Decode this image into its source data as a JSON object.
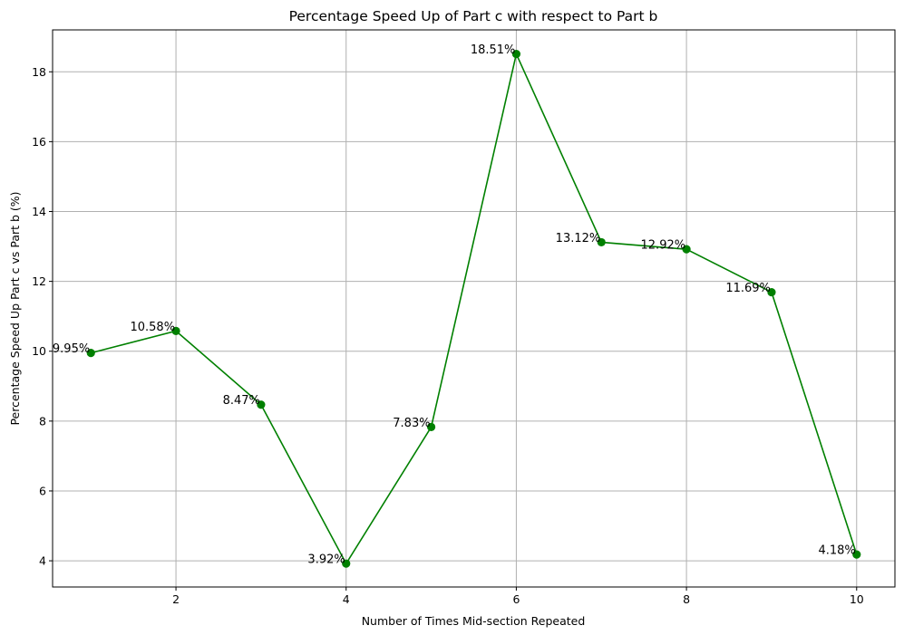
{
  "chart_data": {
    "type": "line",
    "title": "Percentage Speed Up of Part c with respect to Part b",
    "xlabel": "Number of Times Mid-section Repeated",
    "ylabel": "Percentage Speed Up Part c vs Part b (%)",
    "x": [
      1,
      2,
      3,
      4,
      5,
      6,
      7,
      8,
      9,
      10
    ],
    "series": [
      {
        "values": [
          9.95,
          10.58,
          8.47,
          3.92,
          7.83,
          18.51,
          13.12,
          12.92,
          11.69,
          4.18
        ],
        "color": "#008000",
        "marker": "circle"
      }
    ],
    "data_labels": [
      "9.95%",
      "10.58%",
      "8.47%",
      "3.92%",
      "7.83%",
      "18.51%",
      "13.12%",
      "12.92%",
      "11.69%",
      "4.18%"
    ],
    "xlim": [
      0.55,
      10.45
    ],
    "ylim": [
      3.25,
      19.2
    ],
    "xticks": [
      2,
      4,
      6,
      8,
      10
    ],
    "yticks": [
      4,
      6,
      8,
      10,
      12,
      14,
      16,
      18
    ],
    "grid": true
  }
}
